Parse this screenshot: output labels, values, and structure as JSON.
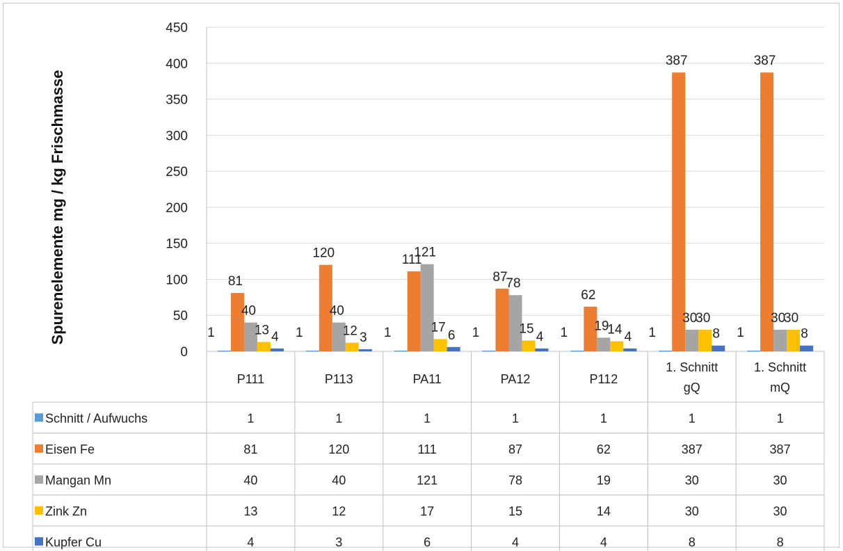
{
  "chart_data": {
    "type": "bar",
    "title": "",
    "xlabel": "",
    "ylabel": "Spurenelemente mg / kg Frischmasse",
    "ylim": [
      0,
      450
    ],
    "yticks": [
      0,
      50,
      100,
      150,
      200,
      250,
      300,
      350,
      400,
      450
    ],
    "categories": [
      [
        "P111"
      ],
      [
        "P113"
      ],
      [
        "PA11"
      ],
      [
        "PA12"
      ],
      [
        "P112"
      ],
      [
        "1. Schnitt",
        "gQ"
      ],
      [
        "1. Schnitt",
        "mQ"
      ]
    ],
    "series": [
      {
        "name": "Schnitt / Aufwuchs",
        "color": "#5b9bd5",
        "values": [
          1,
          1,
          1,
          1,
          1,
          1,
          1
        ]
      },
      {
        "name": "Eisen Fe",
        "color": "#ed7d31",
        "values": [
          81,
          120,
          111,
          87,
          62,
          387,
          387
        ]
      },
      {
        "name": "Mangan Mn",
        "color": "#a5a5a5",
        "values": [
          40,
          40,
          121,
          78,
          19,
          30,
          30
        ]
      },
      {
        "name": "Zink Zn",
        "color": "#ffc000",
        "values": [
          13,
          12,
          17,
          15,
          14,
          30,
          30
        ]
      },
      {
        "name": "Kupfer Cu",
        "color": "#4472c4",
        "values": [
          4,
          3,
          6,
          4,
          4,
          8,
          8
        ]
      }
    ],
    "data_table": true,
    "gridlines": true,
    "legend": "data-table"
  }
}
